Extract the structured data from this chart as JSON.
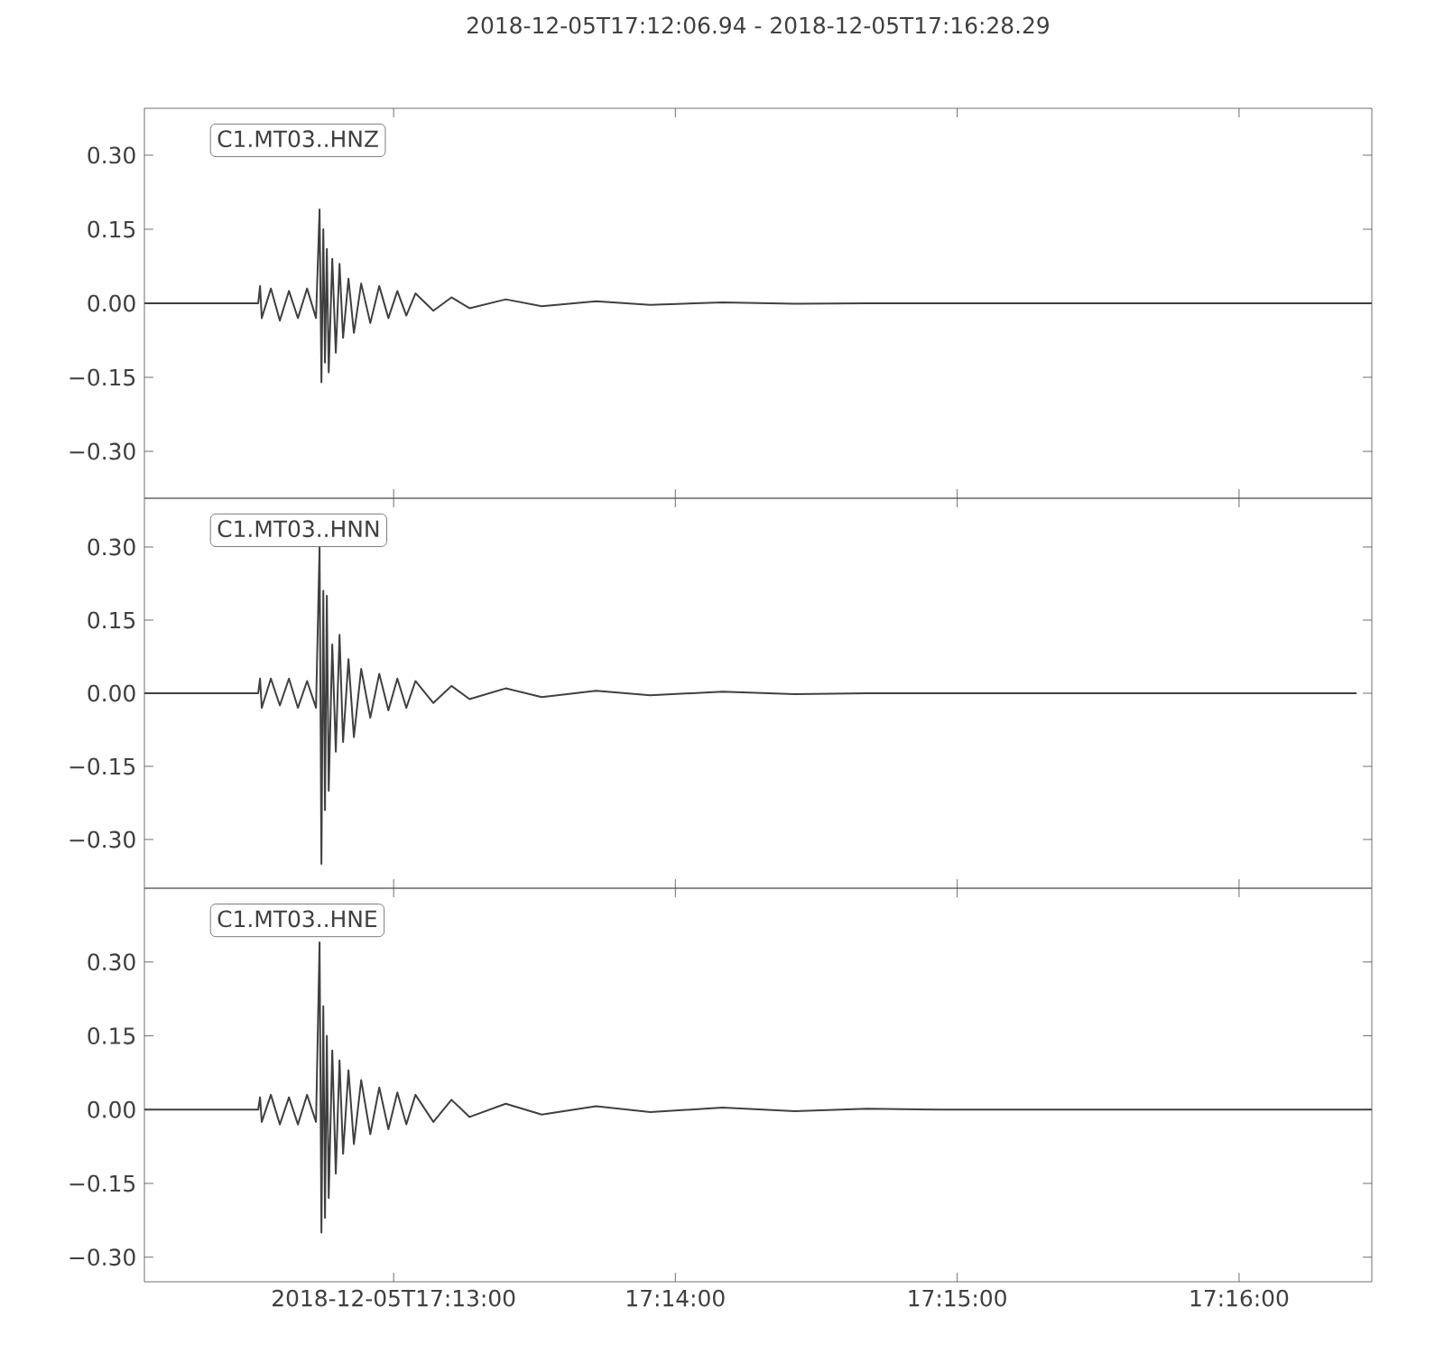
{
  "chart_data": [
    {
      "type": "line",
      "title": "2018-12-05T17:12:06.94  -  2018-12-05T17:16:28.29",
      "legend": "top left",
      "tick_labels": "y",
      "x": [
        17.20193,
        17.20866,
        17.20877,
        17.20887,
        17.20941,
        17.20994,
        17.21048,
        17.21101,
        17.21155,
        17.21208,
        17.21229,
        17.2124,
        17.21251,
        17.21261,
        17.21272,
        17.21283,
        17.21304,
        17.21325,
        17.21347,
        17.21368,
        17.214,
        17.21432,
        17.21475,
        17.21529,
        17.21582,
        17.21636,
        17.21689,
        17.21742,
        17.21796,
        17.21902,
        17.22009,
        17.22116,
        17.2233,
        17.22543,
        17.22864,
        17.23185,
        17.23612,
        17.24039,
        17.24467,
        17.24894,
        17.27452
      ],
      "series": [
        {
          "name": "C1.MT03..HNZ",
          "color": "#404040",
          "values": [
            0,
            0,
            0.035,
            -0.03,
            0.03,
            -0.035,
            0.025,
            -0.03,
            0.03,
            -0.03,
            0.19,
            -0.16,
            0.15,
            -0.12,
            0.11,
            -0.14,
            0.09,
            -0.1,
            0.08,
            -0.07,
            0.05,
            -0.06,
            0.04,
            -0.04,
            0.035,
            -0.03,
            0.025,
            -0.025,
            0.02,
            -0.015,
            0.012,
            -0.01,
            0.008,
            -0.006,
            0.004,
            -0.003,
            0.002,
            -0.001,
            0,
            0,
            0
          ]
        }
      ],
      "xlim": [
        17.20193,
        17.27452
      ],
      "ylim": [
        -0.395,
        0.395
      ],
      "xticks": [
        {
          "value": 17.21667,
          "label": null
        },
        {
          "value": 17.23333,
          "label": null
        },
        {
          "value": 17.25,
          "label": null
        },
        {
          "value": 17.26667,
          "label": null
        }
      ],
      "yticks": [
        {
          "value": -0.3,
          "label": "−0.30"
        },
        {
          "value": -0.15,
          "label": "−0.15"
        },
        {
          "value": 0,
          "label": "0.00"
        },
        {
          "value": 0.15,
          "label": "0.15"
        },
        {
          "value": 0.3,
          "label": "0.30"
        }
      ]
    },
    {
      "type": "line",
      "legend": "top left",
      "tick_labels": "y",
      "x": [
        17.20193,
        17.20866,
        17.20877,
        17.20887,
        17.20941,
        17.20994,
        17.21048,
        17.21101,
        17.21155,
        17.21208,
        17.21229,
        17.2124,
        17.21251,
        17.21261,
        17.21272,
        17.21283,
        17.21304,
        17.21325,
        17.21347,
        17.21368,
        17.214,
        17.21432,
        17.21475,
        17.21529,
        17.21582,
        17.21636,
        17.21689,
        17.21742,
        17.21796,
        17.21902,
        17.22009,
        17.22116,
        17.2233,
        17.22543,
        17.22864,
        17.23185,
        17.23612,
        17.24039,
        17.24467,
        17.24894,
        17.27362
      ],
      "series": [
        {
          "name": "C1.MT03..HNN",
          "color": "#404040",
          "values": [
            0,
            0,
            0.03,
            -0.03,
            0.03,
            -0.025,
            0.03,
            -0.03,
            0.025,
            -0.03,
            0.3,
            -0.35,
            0.21,
            -0.24,
            0.2,
            -0.2,
            0.1,
            -0.12,
            0.12,
            -0.1,
            0.07,
            -0.09,
            0.05,
            -0.05,
            0.04,
            -0.035,
            0.03,
            -0.03,
            0.025,
            -0.02,
            0.015,
            -0.012,
            0.01,
            -0.008,
            0.005,
            -0.004,
            0.003,
            -0.002,
            0,
            0,
            0
          ]
        }
      ],
      "xlim": [
        17.20193,
        17.27452
      ],
      "ylim": [
        -0.4,
        0.4
      ],
      "xticks": [
        {
          "value": 17.21667,
          "label": null
        },
        {
          "value": 17.23333,
          "label": null
        },
        {
          "value": 17.25,
          "label": null
        },
        {
          "value": 17.26667,
          "label": null
        }
      ],
      "yticks": [
        {
          "value": -0.3,
          "label": "−0.30"
        },
        {
          "value": -0.15,
          "label": "−0.15"
        },
        {
          "value": 0,
          "label": "0.00"
        },
        {
          "value": 0.15,
          "label": "0.15"
        },
        {
          "value": 0.3,
          "label": "0.30"
        }
      ]
    },
    {
      "type": "line",
      "legend": "top left",
      "x": [
        17.20193,
        17.20866,
        17.20877,
        17.20887,
        17.20941,
        17.20994,
        17.21048,
        17.21101,
        17.21155,
        17.21208,
        17.21229,
        17.2124,
        17.21251,
        17.21261,
        17.21272,
        17.21283,
        17.21304,
        17.21325,
        17.21347,
        17.21368,
        17.214,
        17.21432,
        17.21475,
        17.21529,
        17.21582,
        17.21636,
        17.21689,
        17.21742,
        17.21796,
        17.21902,
        17.22009,
        17.22116,
        17.2233,
        17.22543,
        17.22864,
        17.23185,
        17.23612,
        17.24039,
        17.24467,
        17.24894,
        17.27452
      ],
      "series": [
        {
          "name": "C1.MT03..HNE",
          "color": "#404040",
          "values": [
            0,
            0,
            0.025,
            -0.025,
            0.03,
            -0.03,
            0.025,
            -0.03,
            0.03,
            -0.025,
            0.34,
            -0.25,
            0.21,
            -0.22,
            0.15,
            -0.18,
            0.12,
            -0.13,
            0.1,
            -0.09,
            0.08,
            -0.07,
            0.06,
            -0.05,
            0.045,
            -0.04,
            0.035,
            -0.03,
            0.03,
            -0.025,
            0.02,
            -0.015,
            0.012,
            -0.01,
            0.007,
            -0.005,
            0.004,
            -0.003,
            0.002,
            0,
            0
          ]
        }
      ],
      "xlim": [
        17.20193,
        17.27452
      ],
      "ylim": [
        -0.35,
        0.45
      ],
      "xticks": [
        {
          "value": 17.21667,
          "label": "2018-12-05T17:13:00"
        },
        {
          "value": 17.23333,
          "label": "17:14:00"
        },
        {
          "value": 17.25,
          "label": "17:15:00"
        },
        {
          "value": 17.26667,
          "label": "17:16:00"
        }
      ],
      "yticks": [
        {
          "value": -0.3,
          "label": "−0.30"
        },
        {
          "value": -0.15,
          "label": "−0.15"
        },
        {
          "value": 0,
          "label": "0.00"
        },
        {
          "value": 0.15,
          "label": "0.15"
        },
        {
          "value": 0.3,
          "label": "0.30"
        }
      ]
    }
  ]
}
